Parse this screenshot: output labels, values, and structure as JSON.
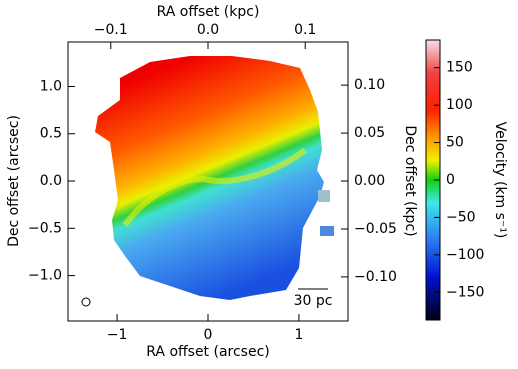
{
  "chart_data": {
    "type": "image",
    "xlabel": "RA offset (arcsec)",
    "ylabel": "Dec offset (arcsec)",
    "x2label": "RA offset (kpc)",
    "y2label": "Dec offset (kpc)",
    "xlim": [
      -1.54,
      1.54
    ],
    "xticks": [
      {
        "value": -1,
        "label": "−1"
      },
      0,
      1
    ],
    "ylim": [
      -1.48,
      1.47
    ],
    "yticks": [
      {
        "value": 1.0,
        "label": "1.0"
      },
      {
        "value": 0.5,
        "label": "0.5"
      },
      {
        "value": 0.0,
        "label": "0.0"
      },
      {
        "value": -0.5,
        "label": "−0.5"
      },
      {
        "value": -1.0,
        "label": "−1.0"
      }
    ],
    "x2lim": [
      -0.144,
      0.144
    ],
    "x2ticks": [
      {
        "value": -0.1,
        "label": "−0.1"
      },
      {
        "value": 0.0,
        "label": "0.0"
      },
      0.1
    ],
    "y2lim": [
      -0.146,
      0.145
    ],
    "y2ticks": [
      {
        "value": 0.1,
        "label": "0.10"
      },
      {
        "value": 0.05,
        "label": "0.05"
      },
      {
        "value": 0.0,
        "label": "0.00"
      },
      {
        "value": -0.05,
        "label": "−0.05"
      },
      {
        "value": -0.1,
        "label": "−0.10"
      }
    ],
    "colorbar": {
      "label": "Velocity (km s⁻¹)",
      "lim": [
        -187,
        187
      ],
      "ticks": [
        150,
        100,
        50,
        0,
        {
          "value": -50,
          "label": "−50"
        },
        {
          "value": -100,
          "label": "−100"
        },
        {
          "value": -150,
          "label": "−150"
        }
      ]
    },
    "scale_bar": "30 pc"
  }
}
